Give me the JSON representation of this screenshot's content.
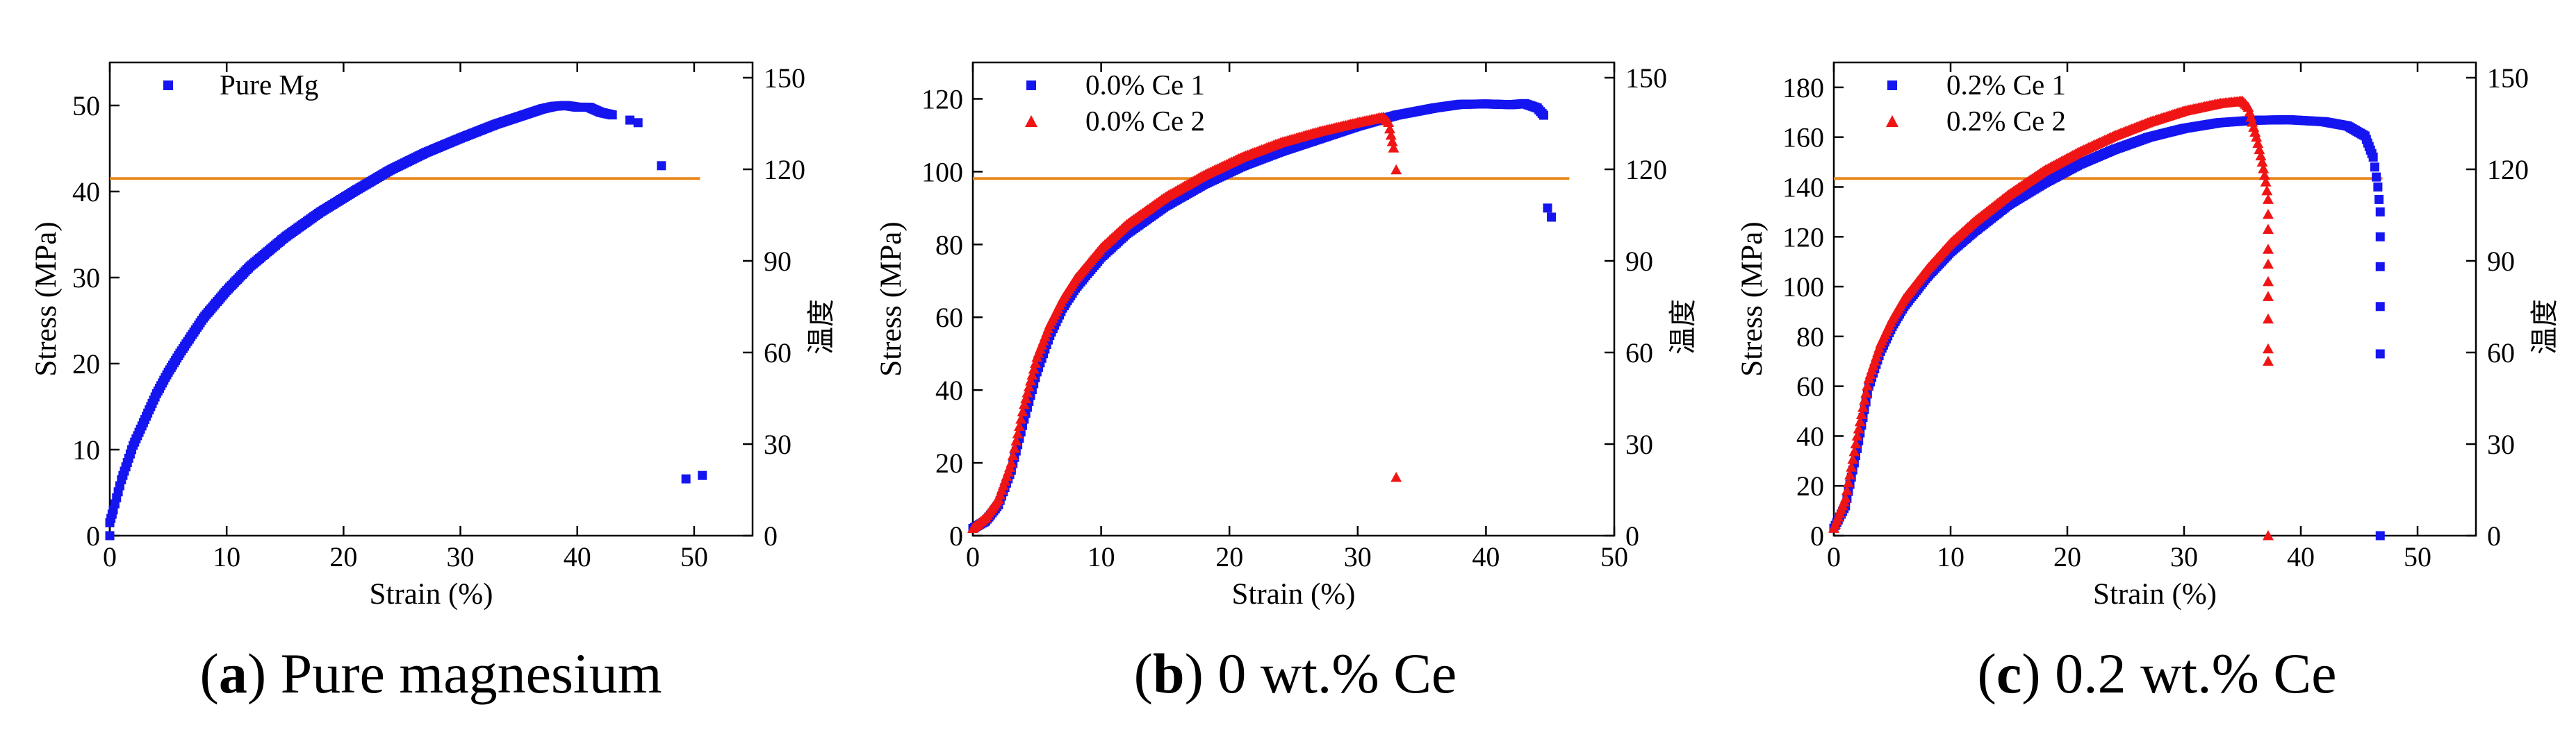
{
  "chart_data": [
    {
      "type": "scatter",
      "caption": {
        "open": "(",
        "letter": "a",
        "close": ")",
        "text": " Pure magnesium"
      },
      "xlabel": "Strain (%)",
      "ylabel": "Stress (MPa)",
      "y2label": "温度",
      "xlim": [
        0,
        55
      ],
      "ylim": [
        0,
        55
      ],
      "y2lim": [
        0,
        155
      ],
      "xticks": [
        0,
        10,
        20,
        30,
        40,
        50
      ],
      "yticks": [
        0,
        10,
        20,
        30,
        40,
        50
      ],
      "y2ticks": [
        0,
        30,
        60,
        90,
        120,
        150
      ],
      "hline": {
        "y2": 117,
        "x_from": 0,
        "x_to": 50.5,
        "color": "#E8881F"
      },
      "legend_position": "top-left",
      "series": [
        {
          "name": "Pure Mg",
          "marker": "square",
          "color": "#1515F0",
          "curve": [
            [
              0,
              1.5
            ],
            [
              0.3,
              3
            ],
            [
              1,
              6.5
            ],
            [
              2,
              10.5
            ],
            [
              3,
              13.5
            ],
            [
              4,
              16.5
            ],
            [
              5,
              19
            ],
            [
              6,
              21.2
            ],
            [
              8,
              25.3
            ],
            [
              10,
              28.5
            ],
            [
              12,
              31.3
            ],
            [
              15,
              34.7
            ],
            [
              18,
              37.6
            ],
            [
              21,
              40.1
            ],
            [
              24,
              42.5
            ],
            [
              27,
              44.5
            ],
            [
              30,
              46.2
            ],
            [
              33,
              47.8
            ],
            [
              35,
              48.7
            ],
            [
              37,
              49.6
            ],
            [
              38,
              49.9
            ],
            [
              39,
              50
            ],
            [
              40,
              49.8
            ],
            [
              41,
              49.8
            ],
            [
              42,
              49.2
            ],
            [
              43,
              48.9
            ]
          ],
          "points": [
            [
              0,
              0
            ],
            [
              44.5,
              48.3
            ],
            [
              45.2,
              48.0
            ],
            [
              47.2,
              43
            ],
            [
              49.3,
              6.6
            ],
            [
              50.7,
              7.0
            ]
          ]
        }
      ]
    },
    {
      "type": "scatter",
      "caption": {
        "open": "(",
        "letter": "b",
        "close": ")",
        "text": " 0 wt.% Ce"
      },
      "xlabel": "Strain (%)",
      "ylabel": "Stress (MPa)",
      "y2label": "温度",
      "xlim": [
        0,
        50
      ],
      "ylim": [
        0,
        130
      ],
      "y2lim": [
        0,
        155
      ],
      "xticks": [
        0,
        10,
        20,
        30,
        40,
        50
      ],
      "yticks": [
        0,
        20,
        40,
        60,
        80,
        100,
        120
      ],
      "y2ticks": [
        0,
        30,
        60,
        90,
        120,
        150
      ],
      "hline": {
        "y2": 117,
        "x_from": 0,
        "x_to": 46.5,
        "color": "#E8881F"
      },
      "legend_position": "top-left",
      "series": [
        {
          "name": "0.0% Ce 1",
          "marker": "square",
          "color": "#1515F0",
          "curve": [
            [
              0,
              2
            ],
            [
              1,
              4
            ],
            [
              2,
              8.5
            ],
            [
              3,
              18
            ],
            [
              4,
              32
            ],
            [
              5,
              45
            ],
            [
              6,
              55
            ],
            [
              7,
              62.5
            ],
            [
              8,
              68
            ],
            [
              10,
              76.5
            ],
            [
              12,
              83
            ],
            [
              15,
              90.5
            ],
            [
              18,
              96.5
            ],
            [
              21,
              101.5
            ],
            [
              24,
              105.5
            ],
            [
              27,
              109
            ],
            [
              30,
              112.5
            ],
            [
              33,
              115.5
            ],
            [
              36,
              117.5
            ],
            [
              38,
              118.5
            ],
            [
              40,
              118.6
            ],
            [
              42,
              118.4
            ],
            [
              43,
              118.7
            ],
            [
              44,
              117.5
            ],
            [
              44.5,
              115.5
            ]
          ],
          "points": [
            [
              44.8,
              90
            ],
            [
              45.1,
              87.5
            ]
          ]
        },
        {
          "name": "0.0% Ce 2",
          "marker": "triangle",
          "color": "#F01515",
          "curve": [
            [
              0,
              2
            ],
            [
              1,
              5
            ],
            [
              2,
              10
            ],
            [
              3,
              20
            ],
            [
              4,
              36
            ],
            [
              5,
              49
            ],
            [
              6,
              58
            ],
            [
              7,
              65
            ],
            [
              8,
              70.5
            ],
            [
              10,
              79
            ],
            [
              12,
              85.5
            ],
            [
              15,
              93
            ],
            [
              18,
              99
            ],
            [
              21,
              104
            ],
            [
              24,
              108
            ],
            [
              27,
              111
            ],
            [
              30,
              113.5
            ],
            [
              32,
              115
            ],
            [
              32.4,
              113.5
            ],
            [
              32.6,
              110
            ],
            [
              32.8,
              106.5
            ]
          ],
          "points": [
            [
              33,
              100.5
            ],
            [
              33,
              16
            ]
          ]
        }
      ]
    },
    {
      "type": "scatter",
      "caption": {
        "open": "(",
        "letter": "c",
        "close": ")",
        "text": " 0.2 wt.% Ce"
      },
      "xlabel": "Strain (%)",
      "ylabel": "Stress (MPa)",
      "y2label": "温度",
      "xlim": [
        0,
        55
      ],
      "ylim": [
        0,
        190
      ],
      "y2lim": [
        0,
        155
      ],
      "xticks": [
        0,
        10,
        20,
        30,
        40,
        50
      ],
      "yticks": [
        0,
        20,
        40,
        60,
        80,
        100,
        120,
        140,
        160,
        180
      ],
      "y2ticks": [
        0,
        30,
        60,
        90,
        120,
        150
      ],
      "hline": {
        "y2": 117,
        "x_from": 0,
        "x_to": 47,
        "color": "#E8881F"
      },
      "legend_position": "top-left",
      "series": [
        {
          "name": "0.2% Ce 1",
          "marker": "square",
          "color": "#1515F0",
          "curve": [
            [
              0,
              3
            ],
            [
              1,
              12
            ],
            [
              2,
              35
            ],
            [
              3,
              60
            ],
            [
              4,
              74
            ],
            [
              5,
              84
            ],
            [
              6,
              92
            ],
            [
              8,
              104
            ],
            [
              10,
              114
            ],
            [
              12,
              122
            ],
            [
              15,
              133
            ],
            [
              18,
              141.5
            ],
            [
              21,
              149
            ],
            [
              24,
              155
            ],
            [
              27,
              160
            ],
            [
              30,
              163.5
            ],
            [
              33,
              165.8
            ],
            [
              36,
              166.8
            ],
            [
              39,
              167
            ],
            [
              42,
              166.2
            ],
            [
              44,
              164.5
            ],
            [
              45.5,
              160.5
            ],
            [
              46.2,
              152
            ],
            [
              46.6,
              140
            ],
            [
              46.8,
              130
            ]
          ],
          "points": [
            [
              46.8,
              120
            ],
            [
              46.8,
              108
            ],
            [
              46.8,
              92
            ],
            [
              46.8,
              73
            ],
            [
              46.8,
              0
            ]
          ]
        },
        {
          "name": "0.2% Ce 2",
          "marker": "triangle",
          "color": "#F01515",
          "curve": [
            [
              0,
              3
            ],
            [
              1,
              15
            ],
            [
              2,
              40
            ],
            [
              3,
              63
            ],
            [
              4,
              77
            ],
            [
              5,
              87
            ],
            [
              6,
              95
            ],
            [
              8,
              107
            ],
            [
              10,
              117.5
            ],
            [
              12,
              126
            ],
            [
              15,
              137
            ],
            [
              18,
              146.5
            ],
            [
              21,
              154
            ],
            [
              24,
              160.5
            ],
            [
              27,
              166
            ],
            [
              30,
              170.5
            ],
            [
              33,
              173.5
            ],
            [
              35,
              174.5
            ],
            [
              35.5,
              172
            ],
            [
              36.2,
              160
            ],
            [
              36.7,
              150
            ],
            [
              37,
              142
            ],
            [
              37.2,
              135
            ]
          ],
          "points": [
            [
              37.2,
              129
            ],
            [
              37.2,
              123
            ],
            [
              37.2,
              115
            ],
            [
              37.2,
              109
            ],
            [
              37.2,
              102
            ],
            [
              37.2,
              96
            ],
            [
              37.2,
              87
            ],
            [
              37.2,
              75
            ],
            [
              37.2,
              70
            ],
            [
              37.2,
              0
            ]
          ]
        }
      ]
    }
  ]
}
